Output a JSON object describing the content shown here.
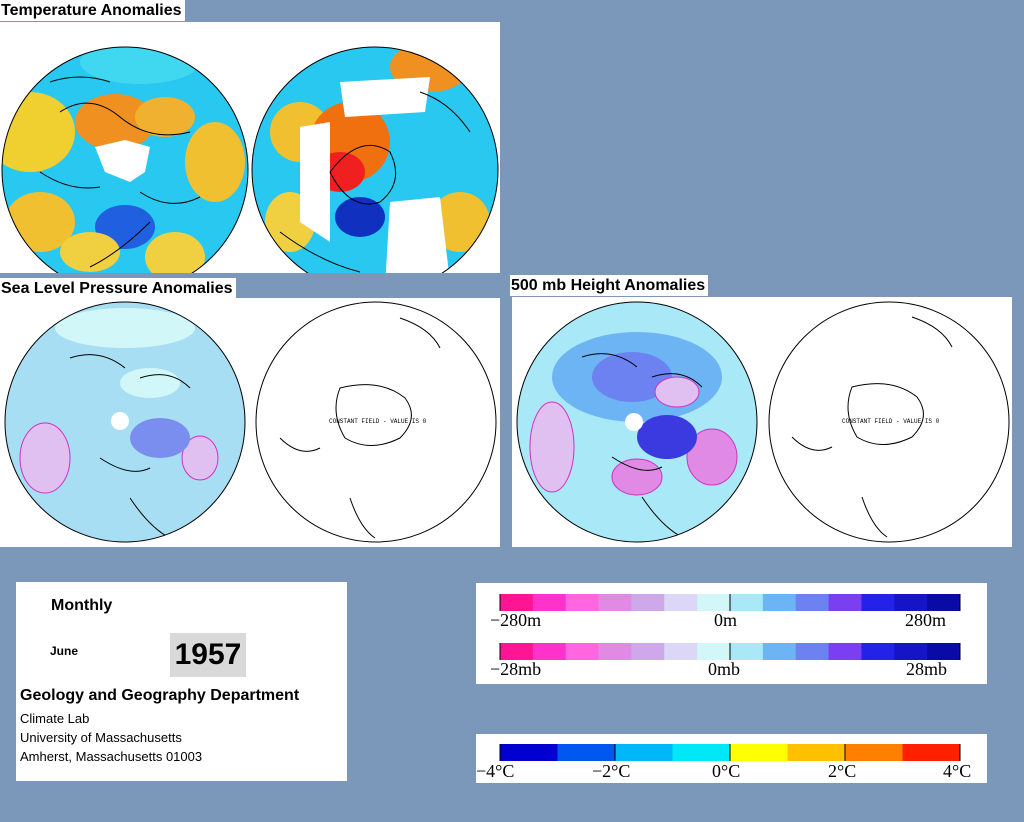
{
  "titles": {
    "temperature": "Temperature Anomalies",
    "slp": "Sea Level Pressure Anomalies",
    "height500": "500 mb Height Anomalies"
  },
  "globe_labels": {
    "slp_south": "CONSTANT FIELD - VALUE IS 0",
    "h500_south": "CONSTANT FIELD - VALUE IS 0"
  },
  "info": {
    "period": "Monthly",
    "month": "June",
    "year": "1957",
    "department": "Geology and Geography Department",
    "lab": "Climate Lab",
    "university": "University of Massachusetts",
    "address": "Amherst, Massachusetts 01003"
  },
  "height_scale": {
    "left": "−280m",
    "center": "0m",
    "right": "280m"
  },
  "pressure_scale": {
    "left": "−28mb",
    "center": "0mb",
    "right": "28mb"
  },
  "temp_scale": {
    "t1": "−4°C",
    "t2": "−2°C",
    "t3": "0°C",
    "t4": "2°C",
    "t5": "4°C"
  },
  "colors": {
    "anomaly_scale": [
      "#ff1493",
      "#ff33cc",
      "#ff66e0",
      "#e08ae6",
      "#cfa8ec",
      "#dcd7f7",
      "#d2f7f9",
      "#a8e8f7",
      "#6cb4f4",
      "#6b82f0",
      "#7a3ff0",
      "#2222e8",
      "#1515c8",
      "#0a0aa6"
    ],
    "temperature_scale": [
      "#0000d0",
      "#0058f0",
      "#00b8f8",
      "#00e8f8",
      "#ffff00",
      "#ffc000",
      "#ff8000",
      "#ff2000"
    ]
  }
}
